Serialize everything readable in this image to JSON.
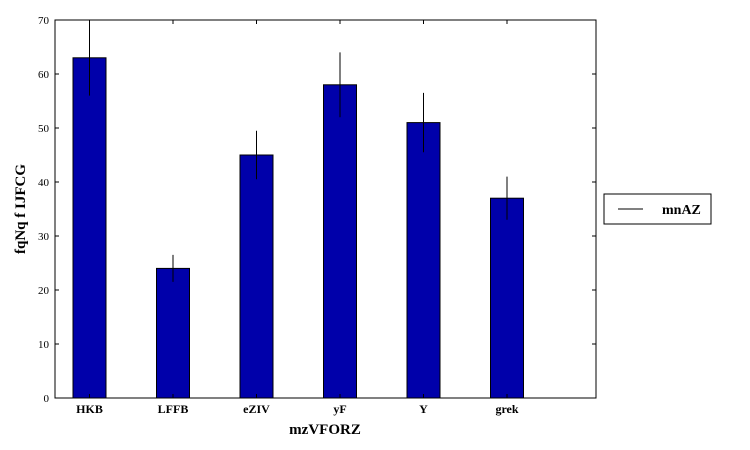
{
  "chart_data": {
    "type": "bar",
    "title": "",
    "xlabel": "mzVFORZ",
    "ylabel": "fqNq  f IJFCG",
    "categories": [
      "HKB",
      "LFFB",
      "eZIV",
      "yF",
      "Y",
      "grek"
    ],
    "series": [
      {
        "name": "mnAZ",
        "values": [
          63,
          24,
          45,
          58,
          51,
          37
        ],
        "errors": [
          7,
          2.5,
          4.5,
          6,
          5.5,
          4
        ]
      }
    ],
    "ylim": [
      0,
      70
    ],
    "yticks": [
      0,
      10,
      20,
      30,
      40,
      50,
      60,
      70
    ],
    "grid": false,
    "legend": "right",
    "bar_color": "#0000aa",
    "error_color": "#000000"
  }
}
